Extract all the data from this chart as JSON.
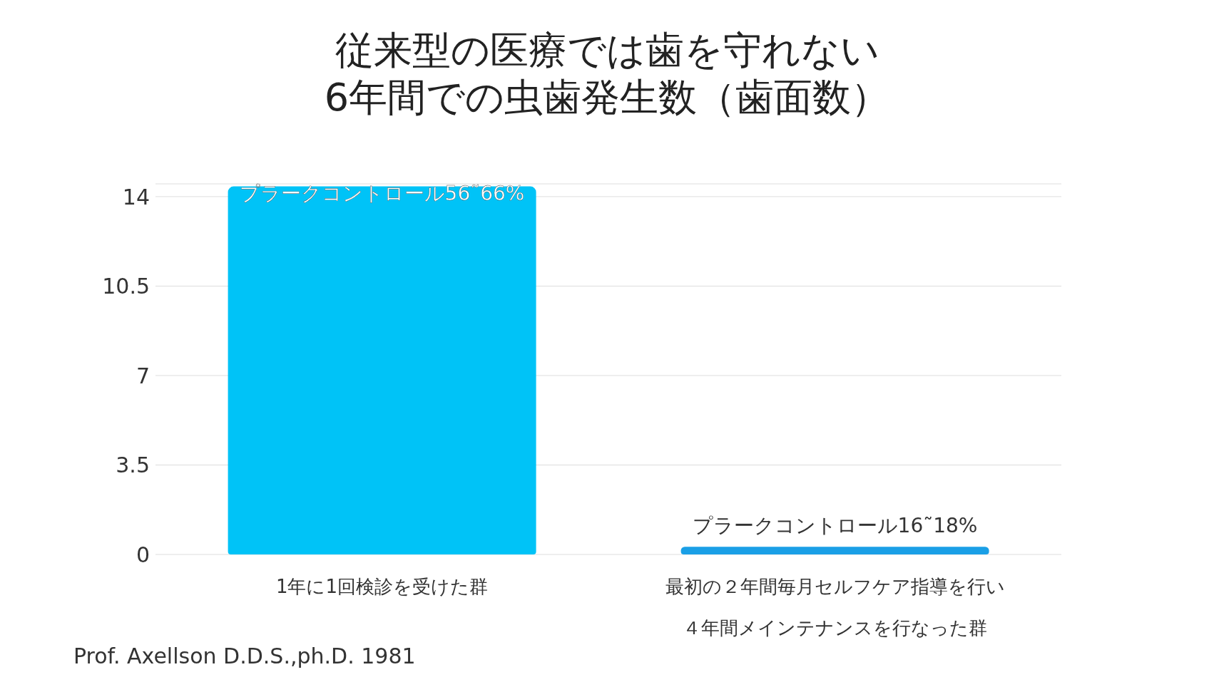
{
  "chart_data": {
    "type": "bar",
    "title": "従来型の医療では歯を守れない",
    "subtitle": "6年間での虫歯発生数（歯面数）",
    "categories": [
      "1年に1回検診を受けた群",
      "最初の２年間毎月セルフケア指導を行い４年間メインテナンスを行なった群"
    ],
    "values": [
      14.4,
      0.3
    ],
    "colors": [
      "#00c3f7",
      "#1a9fe6"
    ],
    "ylim": [
      0,
      14.5
    ],
    "yticks": [
      0,
      3.5,
      7,
      10.5,
      14
    ],
    "grid": "y",
    "tick_labels": "xy",
    "annotations": [
      "プラークコントロール56˜66%",
      "プラークコントロール16˜18%",
      "Prof. Axellson D.D.S.,ph.D. 1981"
    ]
  }
}
